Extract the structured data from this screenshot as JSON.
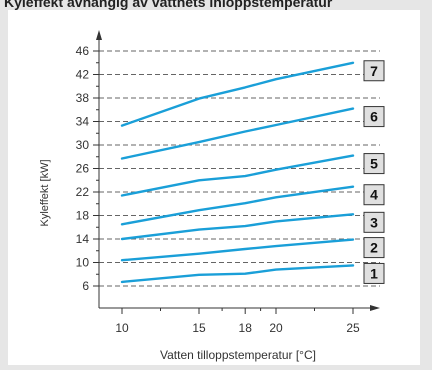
{
  "header": {
    "title": "Kyleffekt avhängig av vattnets inloppstemperatur"
  },
  "chart_data": {
    "type": "line",
    "title": "",
    "xlabel": "Vatten tilloppstemperatur [°C]",
    "ylabel": "Kyleffekt [kW]",
    "xlim": [
      8,
      27
    ],
    "ylim": [
      4,
      49
    ],
    "x_ticks": [
      10,
      15,
      18,
      20,
      25
    ],
    "y_ticks": [
      6,
      10,
      14,
      18,
      22,
      26,
      30,
      34,
      38,
      42,
      46
    ],
    "grid": "horizontal dashed",
    "line_color": "#1a9fd8",
    "x": [
      10,
      15,
      18,
      20,
      25
    ],
    "series": [
      {
        "label": "1",
        "values": [
          6.7,
          7.9,
          8.1,
          8.8,
          9.5
        ]
      },
      {
        "label": "2",
        "values": [
          10.4,
          11.5,
          12.3,
          12.8,
          13.9
        ]
      },
      {
        "label": "3",
        "values": [
          14.0,
          15.6,
          16.2,
          17.0,
          18.2
        ]
      },
      {
        "label": "4",
        "values": [
          16.5,
          18.9,
          20.1,
          21.1,
          22.9
        ]
      },
      {
        "label": "5",
        "values": [
          21.4,
          24.0,
          24.7,
          25.8,
          28.2
        ]
      },
      {
        "label": "6",
        "values": [
          27.7,
          30.5,
          32.3,
          33.4,
          36.2
        ]
      },
      {
        "label": "7",
        "values": [
          33.3,
          37.9,
          39.8,
          41.2,
          44.0
        ]
      }
    ]
  }
}
